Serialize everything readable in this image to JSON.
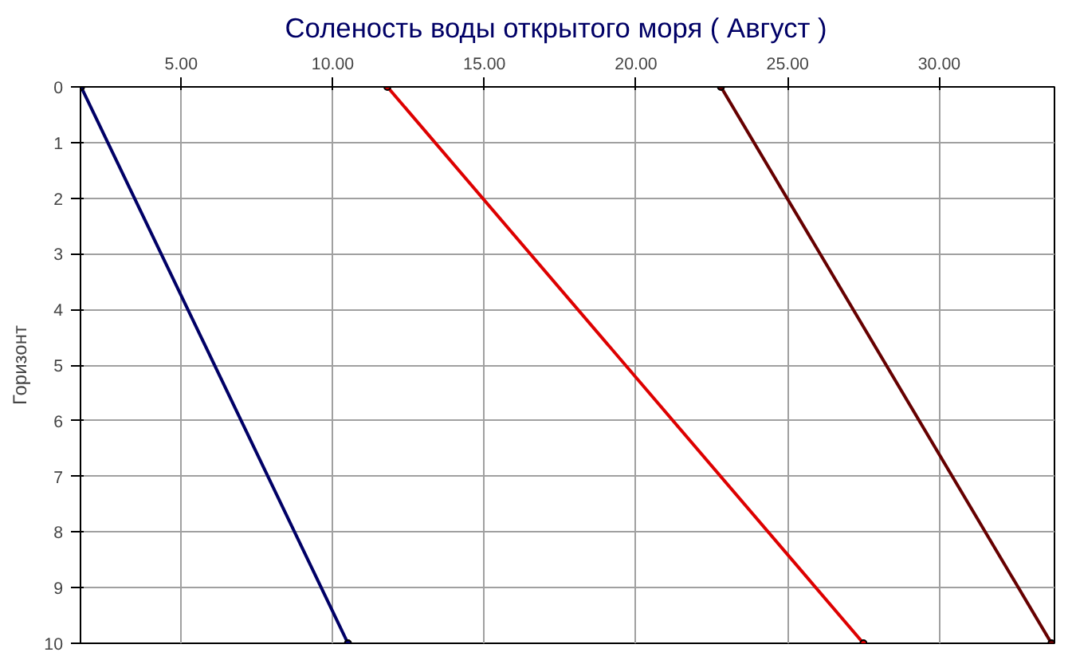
{
  "chart_data": {
    "type": "line",
    "title": "Соленость воды открытого моря    ( Август )",
    "ylabel": "Горизонт",
    "xlim": [
      1.68,
      33.8
    ],
    "xticks": [
      {
        "value": 5,
        "label": "5.00"
      },
      {
        "value": 10,
        "label": "10.00"
      },
      {
        "value": 15,
        "label": "15.00"
      },
      {
        "value": 20,
        "label": "20.00"
      },
      {
        "value": 25,
        "label": "25.00"
      },
      {
        "value": 30,
        "label": "30.00"
      }
    ],
    "ylim": [
      10,
      0
    ],
    "yticks": [
      0,
      1,
      2,
      3,
      4,
      5,
      6,
      7,
      8,
      9,
      10
    ],
    "grid": true,
    "marker": "circle",
    "line_style": "solid",
    "series": [
      {
        "color": "#000066",
        "x": [
          1.7,
          10.5
        ],
        "values": [
          0,
          10
        ]
      },
      {
        "color": "#dd0000",
        "x": [
          11.8,
          27.5
        ],
        "values": [
          0,
          10
        ]
      },
      {
        "color": "#660000",
        "x": [
          22.8,
          33.7
        ],
        "values": [
          0,
          10
        ]
      }
    ]
  }
}
